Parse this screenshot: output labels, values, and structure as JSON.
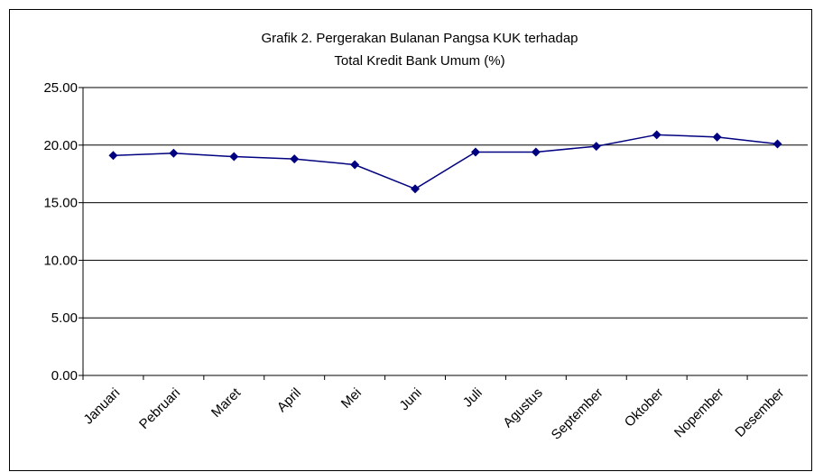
{
  "chart_data": {
    "type": "line",
    "title": [
      "Grafik 2. Pergerakan Bulanan Pangsa KUK terhadap",
      "Total Kredit Bank Umum (%)"
    ],
    "categories": [
      "Januari",
      "Pebruari",
      "Maret",
      "April",
      "Mei",
      "Juni",
      "Juli",
      "Agustus",
      "September",
      "Oktober",
      "Nopember",
      "Desember"
    ],
    "series": [
      {
        "color": "#000080",
        "values": [
          19.1,
          19.3,
          19.0,
          18.8,
          18.3,
          16.2,
          19.4,
          19.4,
          19.9,
          20.9,
          20.7,
          20.1
        ]
      }
    ],
    "ylim": [
      0,
      25
    ],
    "yticks": [
      {
        "value": 0,
        "label": "0.00"
      },
      {
        "value": 5,
        "label": "5.00"
      },
      {
        "value": 10,
        "label": "10.00"
      },
      {
        "value": 15,
        "label": "15.00"
      },
      {
        "value": 20,
        "label": "20.00"
      },
      {
        "value": 25,
        "label": "25.00"
      }
    ],
    "grid": true
  }
}
